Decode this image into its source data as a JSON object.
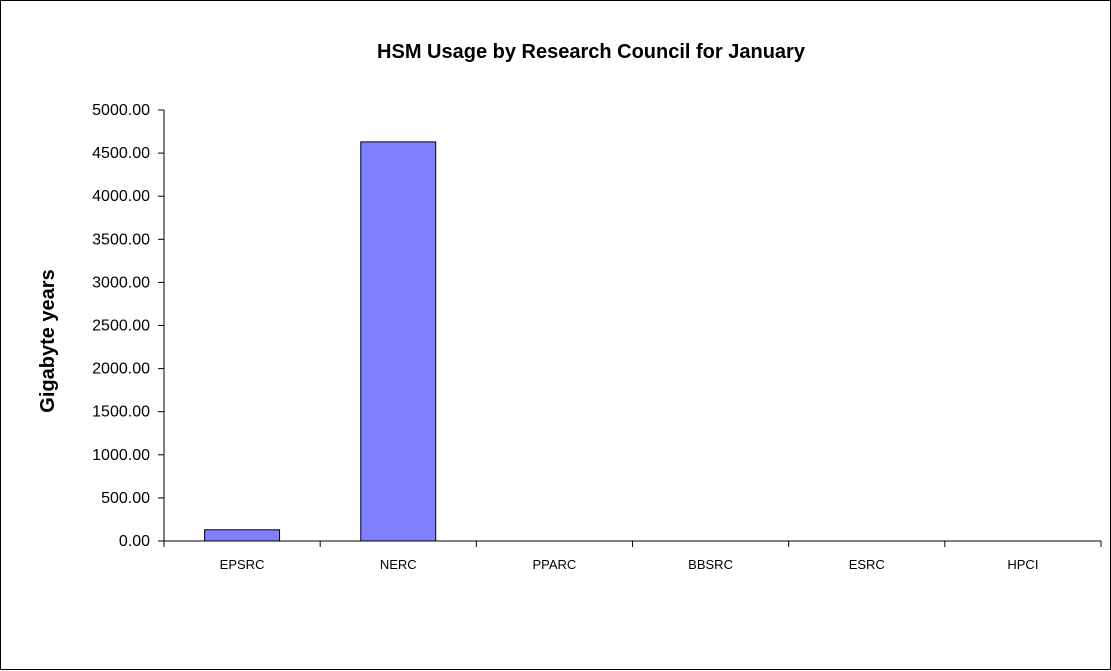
{
  "chart_data": {
    "type": "bar",
    "title": "HSM Usage by Research Council for January",
    "xlabel": "",
    "ylabel": "Gigabyte years",
    "categories": [
      "EPSRC",
      "NERC",
      "PPARC",
      "BBSRC",
      "ESRC",
      "HPCI"
    ],
    "values": [
      130,
      4630,
      0,
      0,
      0,
      0
    ],
    "ylim": [
      0,
      5000
    ],
    "yticks": [
      "0.00",
      "500.00",
      "1000.00",
      "1500.00",
      "2000.00",
      "2500.00",
      "3000.00",
      "3500.00",
      "4000.00",
      "4500.00",
      "5000.00"
    ],
    "bar_color": "#8080ff",
    "grid": false,
    "legend": "none"
  }
}
